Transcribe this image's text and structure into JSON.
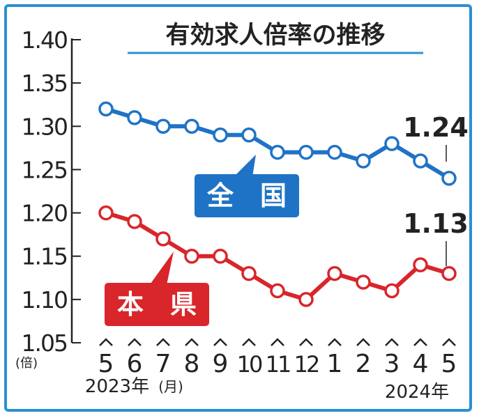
{
  "chart_data": {
    "type": "line",
    "title": "有効求人倍率の推移",
    "y_unit": "(倍)",
    "x_unit": "(月)",
    "ylim": [
      1.05,
      1.4
    ],
    "yticks": [
      "1.40",
      "1.35",
      "1.30",
      "1.25",
      "1.20",
      "1.15",
      "1.10",
      "1.05"
    ],
    "categories": [
      "5",
      "6",
      "7",
      "8",
      "9",
      "10",
      "11",
      "12",
      "1",
      "2",
      "3",
      "4",
      "5"
    ],
    "year_start": "2023年",
    "year_end": "2024年",
    "series": [
      {
        "name": "全　国",
        "color": "#1f73c6",
        "values": [
          1.32,
          1.31,
          1.3,
          1.3,
          1.29,
          1.29,
          1.27,
          1.27,
          1.27,
          1.26,
          1.28,
          1.26,
          1.24
        ],
        "end_label": "1.24"
      },
      {
        "name": "本　県",
        "color": "#d8262b",
        "values": [
          1.2,
          1.19,
          1.17,
          1.15,
          1.15,
          1.13,
          1.11,
          1.1,
          1.13,
          1.12,
          1.11,
          1.14,
          1.13
        ],
        "end_label": "1.13"
      }
    ],
    "grid": false
  }
}
